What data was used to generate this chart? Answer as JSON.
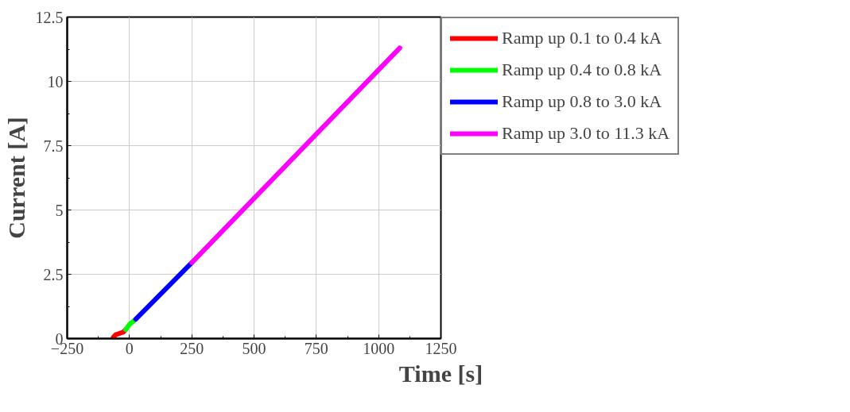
{
  "chart_data": {
    "type": "line",
    "xlabel": "Time [s]",
    "ylabel": "Current [A]",
    "xlim": [
      -250,
      1250
    ],
    "xticks": [
      -250,
      0,
      250,
      500,
      750,
      1000,
      1250
    ],
    "ylim": [
      0,
      12.5
    ],
    "yticks": [
      0,
      2.5,
      5,
      7.5,
      10,
      12.5
    ],
    "grid": true,
    "legend": "right",
    "marker": "none",
    "line_style": "solid",
    "series": [
      {
        "name": "Ramp up 0.1 to 0.4 kA",
        "color": "#ff0000",
        "x": [
          -65,
          -55,
          -40,
          -25,
          -15
        ],
        "values": [
          0.05,
          0.15,
          0.2,
          0.25,
          0.35
        ]
      },
      {
        "name": "Ramp up 0.4 to 0.8 kA",
        "color": "#00ff00",
        "x": [
          -15,
          0,
          25
        ],
        "values": [
          0.35,
          0.55,
          0.75
        ]
      },
      {
        "name": "Ramp up 0.8 to 3.0 kA",
        "color": "#0000ff",
        "x": [
          25,
          250
        ],
        "values": [
          0.75,
          2.95
        ]
      },
      {
        "name": "Ramp up 3.0 to 11.3 kA",
        "color": "#ff00ff",
        "x": [
          250,
          1085
        ],
        "values": [
          2.95,
          11.3
        ]
      }
    ]
  }
}
